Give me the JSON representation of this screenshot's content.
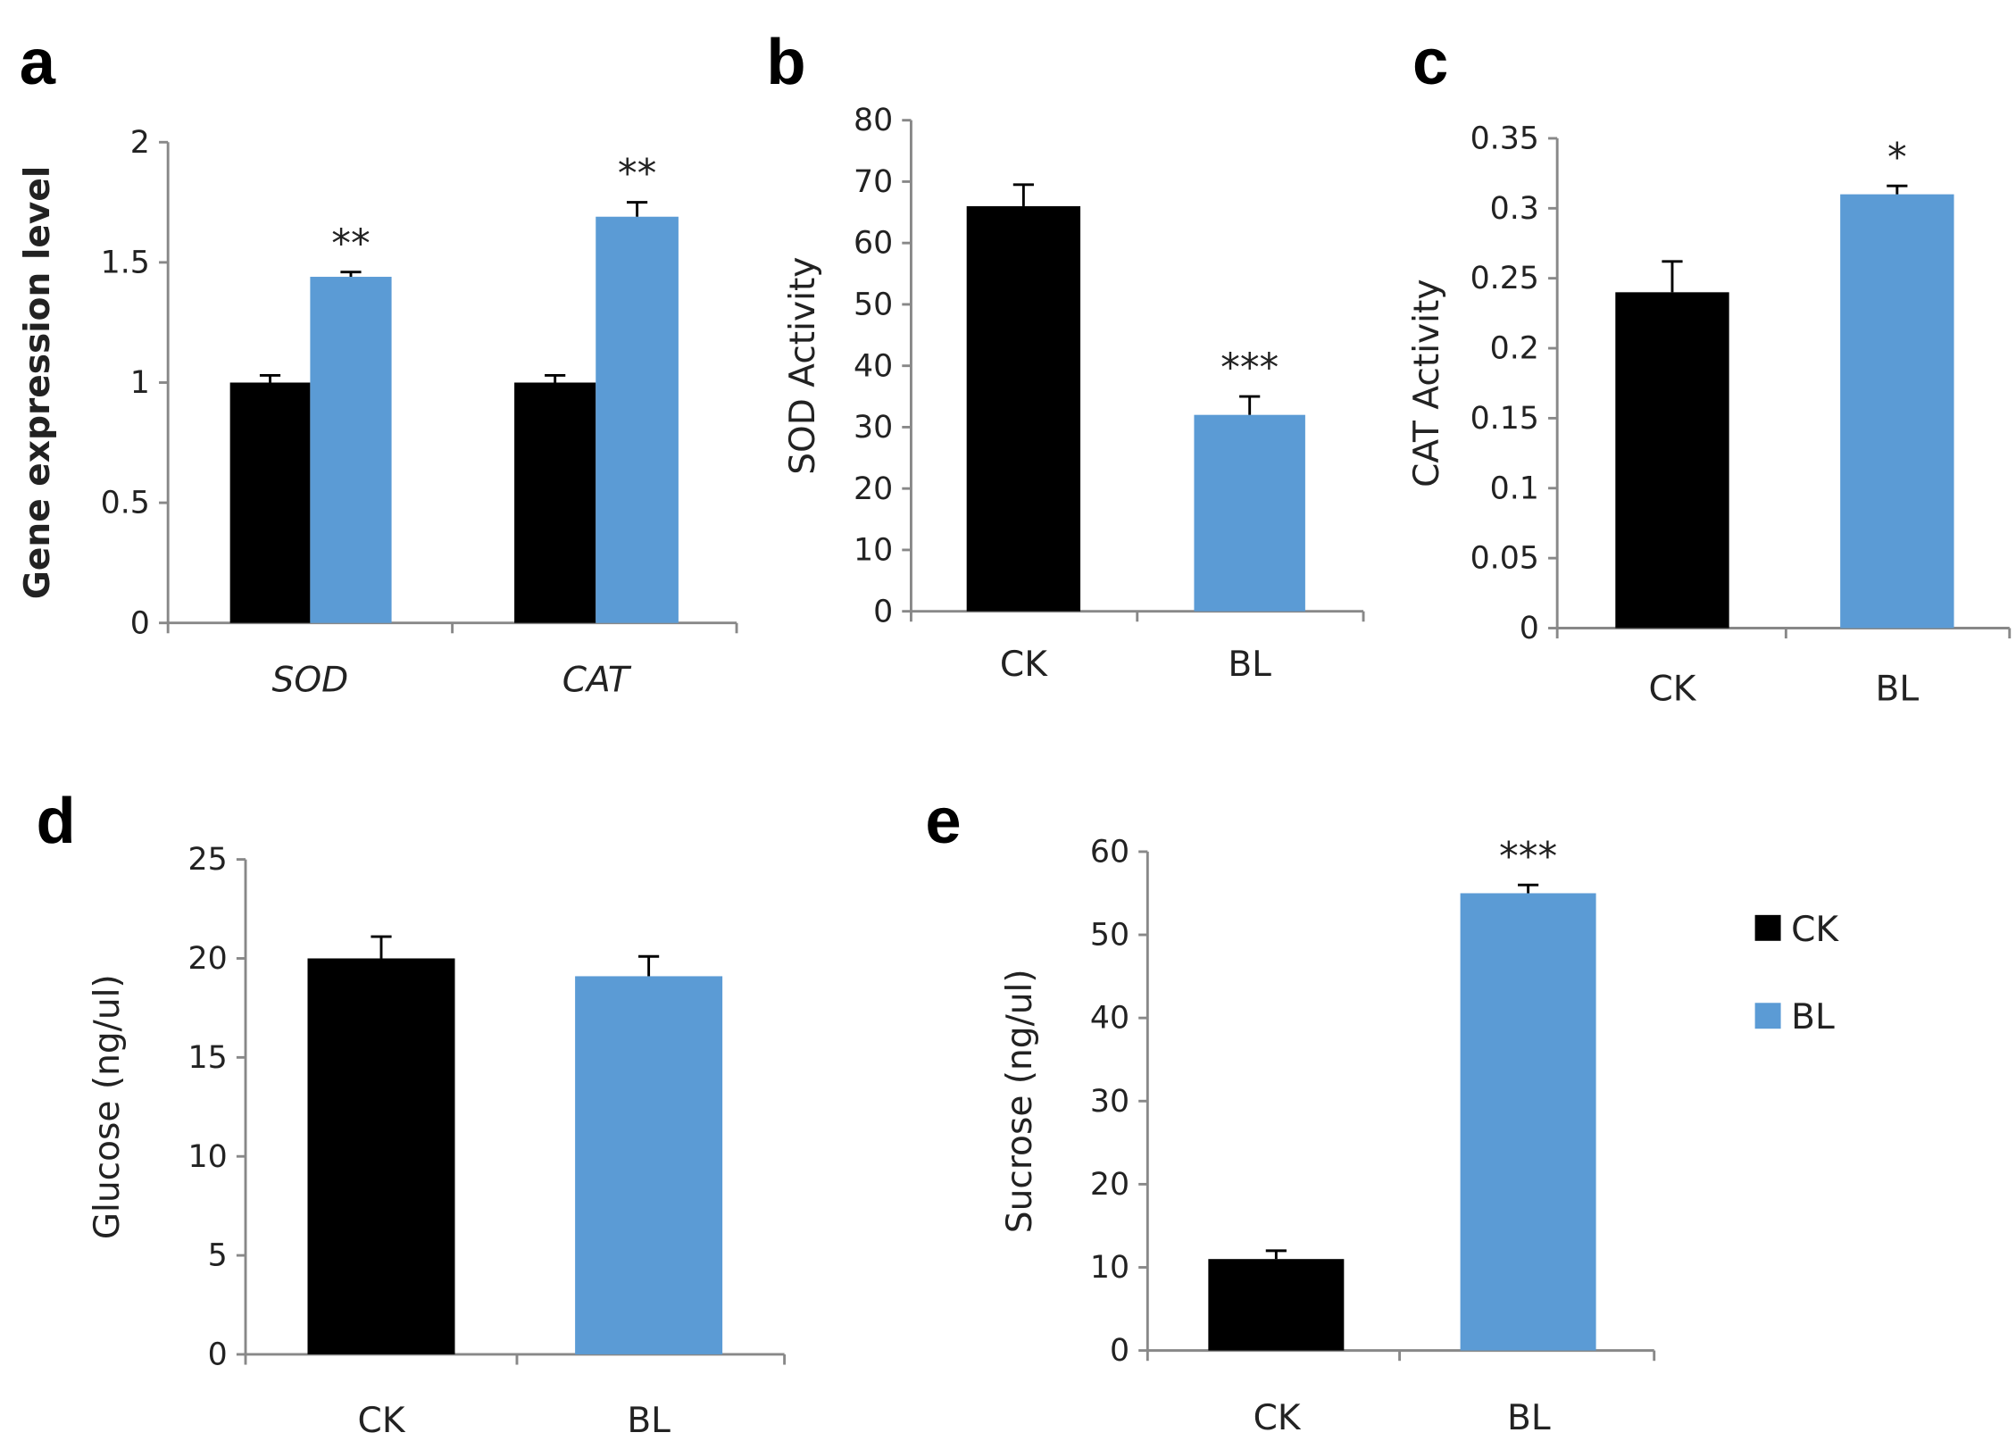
{
  "colors": {
    "CK": "#000000",
    "BL": "#5b9bd5",
    "axis": "#888888"
  },
  "legend": [
    {
      "label": "CK",
      "color": "#000000"
    },
    {
      "label": "BL",
      "color": "#5b9bd5"
    }
  ],
  "chart_data": [
    {
      "panel": "a",
      "type": "bar",
      "ylabel": "Gene expression level",
      "ylim": [
        0,
        2
      ],
      "yticks": [
        "0",
        "0.5",
        "1",
        "1.5",
        "2"
      ],
      "ytick_values": [
        0,
        0.5,
        1,
        1.5,
        2
      ],
      "categories": [
        "SOD",
        "CAT"
      ],
      "series": [
        {
          "name": "CK",
          "values": [
            1.0,
            1.0
          ],
          "errors": [
            0.03,
            0.03
          ]
        },
        {
          "name": "BL",
          "values": [
            1.44,
            1.69
          ],
          "errors": [
            0.02,
            0.06
          ]
        }
      ],
      "significance": [
        "**",
        "**"
      ]
    },
    {
      "panel": "b",
      "type": "bar",
      "ylabel": "SOD Activity",
      "ylim": [
        0,
        80
      ],
      "yticks": [
        "0",
        "10",
        "20",
        "30",
        "40",
        "50",
        "60",
        "70",
        "80"
      ],
      "ytick_values": [
        0,
        10,
        20,
        30,
        40,
        50,
        60,
        70,
        80
      ],
      "categories": [
        "CK",
        "BL"
      ],
      "values": [
        66,
        32
      ],
      "errors": [
        3.5,
        3
      ],
      "significance": [
        "",
        "***"
      ]
    },
    {
      "panel": "c",
      "type": "bar",
      "ylabel": "CAT Activity",
      "ylim": [
        0,
        0.35
      ],
      "yticks": [
        "0",
        "0.05",
        "0.1",
        "0.15",
        "0.2",
        "0.25",
        "0.3",
        "0.35"
      ],
      "ytick_values": [
        0,
        0.05,
        0.1,
        0.15,
        0.2,
        0.25,
        0.3,
        0.35
      ],
      "categories": [
        "CK",
        "BL"
      ],
      "values": [
        0.24,
        0.31
      ],
      "errors": [
        0.022,
        0.006
      ],
      "significance": [
        "",
        "*"
      ]
    },
    {
      "panel": "d",
      "type": "bar",
      "ylabel": "Glucose (ng/ul)",
      "ylim": [
        0,
        25
      ],
      "yticks": [
        "0",
        "5",
        "10",
        "15",
        "20",
        "25"
      ],
      "ytick_values": [
        0,
        5,
        10,
        15,
        20,
        25
      ],
      "categories": [
        "CK",
        "BL"
      ],
      "values": [
        20,
        19.1
      ],
      "errors": [
        1.1,
        1.0
      ],
      "significance": [
        "",
        ""
      ]
    },
    {
      "panel": "e",
      "type": "bar",
      "ylabel": "Sucrose (ng/ul)",
      "ylim": [
        0,
        60
      ],
      "yticks": [
        "0",
        "10",
        "20",
        "30",
        "40",
        "50",
        "60"
      ],
      "ytick_values": [
        0,
        10,
        20,
        30,
        40,
        50,
        60
      ],
      "categories": [
        "CK",
        "BL"
      ],
      "values": [
        11,
        55
      ],
      "errors": [
        1.0,
        1.0
      ],
      "significance": [
        "",
        "***"
      ]
    }
  ]
}
